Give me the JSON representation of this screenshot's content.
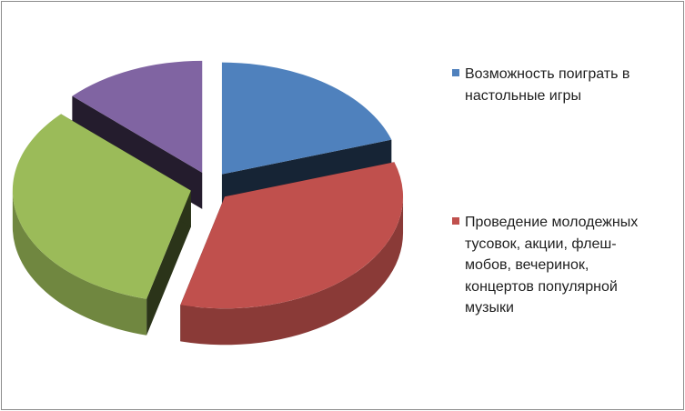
{
  "chart_data": {
    "type": "pie",
    "style": "3d-exploded",
    "slices": [
      {
        "label": "Возможность поиграть в настольные игры",
        "value": 20,
        "color": "#4f81bd"
      },
      {
        "label": "Проведение молодежных тусовок, акции, флеш-мобов, вечеринок, концертов популярной музыки",
        "value": 34,
        "color": "#c0504d"
      },
      {
        "label": "",
        "value": 33,
        "color": "#9bbb59"
      },
      {
        "label": "",
        "value": 13,
        "color": "#8064a2"
      }
    ],
    "legend": {
      "placement": "right",
      "entries": [
        {
          "text": "Возможность поиграть в настольные игры",
          "color": "#4f81bd"
        },
        {
          "text": "Проведение молодежных тусовок, акции, флеш-мобов, вечеринок, концертов популярной музыки",
          "color": "#c0504d"
        }
      ]
    }
  }
}
